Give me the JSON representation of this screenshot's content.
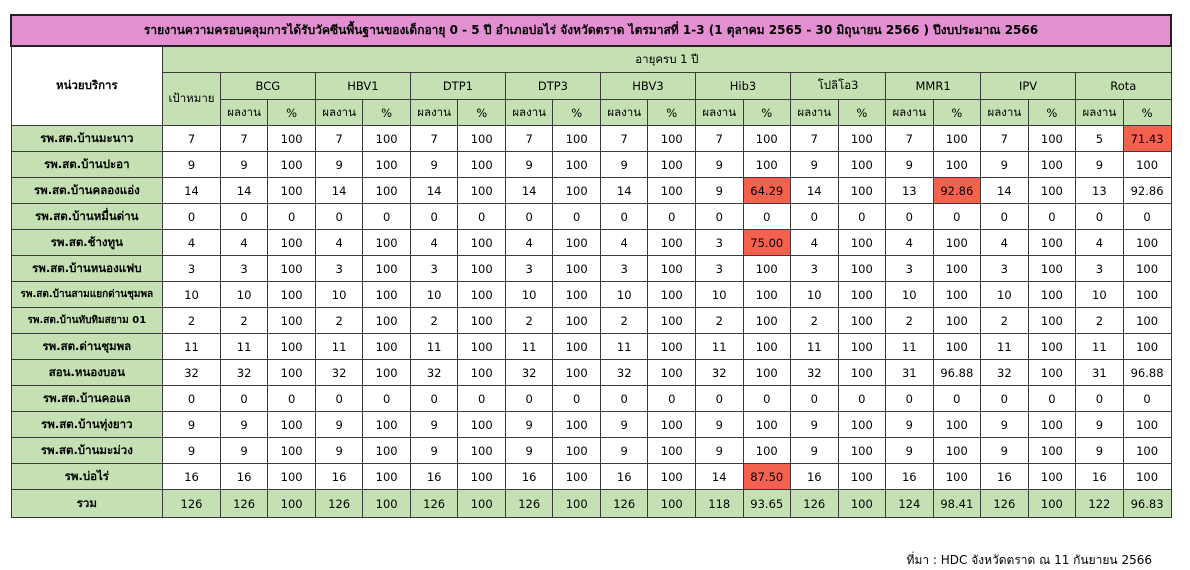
{
  "title": "รายงานความครอบคลุมการได้รับวัคซีนพื้นฐานของเด็กอายุ 0 - 5 ปี อำเภอบ่อไร่ จังหวัดตราด ไตรมาสที่ 1-3 (1 ตุลาคม 2565 - 30 มิถุนายน 2566 ) ปีงบประมาณ 2566",
  "unit_header": "หน่วยบริการ",
  "age_header": "อายุครบ 1 ปี",
  "target_header": "เป้าหมาย",
  "vaccines": [
    "BCG",
    "HBV1",
    "DTP1",
    "DTP3",
    "HBV3",
    "Hib3",
    "โปลิโอ3",
    "MMR1",
    "IPV",
    "Rota"
  ],
  "sub_headers": {
    "result": "ผลงาน",
    "percent": "%"
  },
  "highlight_color": "#f4624f",
  "header_color": "#e58fd3",
  "green_color": "#c5e0b3",
  "rows": [
    {
      "name": "รพ.สต.บ้านมะนาว",
      "target": "7",
      "cells": [
        [
          "7",
          "100"
        ],
        [
          "7",
          "100"
        ],
        [
          "7",
          "100"
        ],
        [
          "7",
          "100"
        ],
        [
          "7",
          "100"
        ],
        [
          "7",
          "100"
        ],
        [
          "7",
          "100"
        ],
        [
          "7",
          "100"
        ],
        [
          "7",
          "100"
        ],
        [
          "5",
          "71.43"
        ]
      ],
      "highlight": [
        9
      ]
    },
    {
      "name": "รพ.สต.บ้านปะอา",
      "target": "9",
      "cells": [
        [
          "9",
          "100"
        ],
        [
          "9",
          "100"
        ],
        [
          "9",
          "100"
        ],
        [
          "9",
          "100"
        ],
        [
          "9",
          "100"
        ],
        [
          "9",
          "100"
        ],
        [
          "9",
          "100"
        ],
        [
          "9",
          "100"
        ],
        [
          "9",
          "100"
        ],
        [
          "9",
          "100"
        ]
      ],
      "highlight": []
    },
    {
      "name": "รพ.สต.บ้านคลองแอ่ง",
      "target": "14",
      "cells": [
        [
          "14",
          "100"
        ],
        [
          "14",
          "100"
        ],
        [
          "14",
          "100"
        ],
        [
          "14",
          "100"
        ],
        [
          "14",
          "100"
        ],
        [
          "9",
          "64.29"
        ],
        [
          "14",
          "100"
        ],
        [
          "13",
          "92.86"
        ],
        [
          "14",
          "100"
        ],
        [
          "13",
          "92.86"
        ]
      ],
      "highlight": [
        5,
        7
      ]
    },
    {
      "name": "รพ.สต.บ้านหมื่นด่าน",
      "target": "0",
      "cells": [
        [
          "0",
          "0"
        ],
        [
          "0",
          "0"
        ],
        [
          "0",
          "0"
        ],
        [
          "0",
          "0"
        ],
        [
          "0",
          "0"
        ],
        [
          "0",
          "0"
        ],
        [
          "0",
          "0"
        ],
        [
          "0",
          "0"
        ],
        [
          "0",
          "0"
        ],
        [
          "0",
          "0"
        ]
      ],
      "highlight": []
    },
    {
      "name": "รพ.สต.ช้างทูน",
      "target": "4",
      "cells": [
        [
          "4",
          "100"
        ],
        [
          "4",
          "100"
        ],
        [
          "4",
          "100"
        ],
        [
          "4",
          "100"
        ],
        [
          "4",
          "100"
        ],
        [
          "3",
          "75.00"
        ],
        [
          "4",
          "100"
        ],
        [
          "4",
          "100"
        ],
        [
          "4",
          "100"
        ],
        [
          "4",
          "100"
        ]
      ],
      "highlight": [
        5
      ]
    },
    {
      "name": "รพ.สต.บ้านหนองแฟบ",
      "target": "3",
      "cells": [
        [
          "3",
          "100"
        ],
        [
          "3",
          "100"
        ],
        [
          "3",
          "100"
        ],
        [
          "3",
          "100"
        ],
        [
          "3",
          "100"
        ],
        [
          "3",
          "100"
        ],
        [
          "3",
          "100"
        ],
        [
          "3",
          "100"
        ],
        [
          "3",
          "100"
        ],
        [
          "3",
          "100"
        ]
      ],
      "highlight": []
    },
    {
      "name": "รพ.สต.บ้านสามแยกด่านชุมพล",
      "target": "10",
      "cells": [
        [
          "10",
          "100"
        ],
        [
          "10",
          "100"
        ],
        [
          "10",
          "100"
        ],
        [
          "10",
          "100"
        ],
        [
          "10",
          "100"
        ],
        [
          "10",
          "100"
        ],
        [
          "10",
          "100"
        ],
        [
          "10",
          "100"
        ],
        [
          "10",
          "100"
        ],
        [
          "10",
          "100"
        ]
      ],
      "highlight": [],
      "small": true
    },
    {
      "name": "รพ.สต.บ้านทับทิมสยาม 01",
      "target": "2",
      "cells": [
        [
          "2",
          "100"
        ],
        [
          "2",
          "100"
        ],
        [
          "2",
          "100"
        ],
        [
          "2",
          "100"
        ],
        [
          "2",
          "100"
        ],
        [
          "2",
          "100"
        ],
        [
          "2",
          "100"
        ],
        [
          "2",
          "100"
        ],
        [
          "2",
          "100"
        ],
        [
          "2",
          "100"
        ]
      ],
      "highlight": [],
      "small": true
    },
    {
      "name": "รพ.สต.ด่านชุมพล",
      "target": "11",
      "cells": [
        [
          "11",
          "100"
        ],
        [
          "11",
          "100"
        ],
        [
          "11",
          "100"
        ],
        [
          "11",
          "100"
        ],
        [
          "11",
          "100"
        ],
        [
          "11",
          "100"
        ],
        [
          "11",
          "100"
        ],
        [
          "11",
          "100"
        ],
        [
          "11",
          "100"
        ],
        [
          "11",
          "100"
        ]
      ],
      "highlight": []
    },
    {
      "name": "สอน.หนองบอน",
      "target": "32",
      "cells": [
        [
          "32",
          "100"
        ],
        [
          "32",
          "100"
        ],
        [
          "32",
          "100"
        ],
        [
          "32",
          "100"
        ],
        [
          "32",
          "100"
        ],
        [
          "32",
          "100"
        ],
        [
          "32",
          "100"
        ],
        [
          "31",
          "96.88"
        ],
        [
          "32",
          "100"
        ],
        [
          "31",
          "96.88"
        ]
      ],
      "highlight": []
    },
    {
      "name": "รพ.สต.บ้านคอแล",
      "target": "0",
      "cells": [
        [
          "0",
          "0"
        ],
        [
          "0",
          "0"
        ],
        [
          "0",
          "0"
        ],
        [
          "0",
          "0"
        ],
        [
          "0",
          "0"
        ],
        [
          "0",
          "0"
        ],
        [
          "0",
          "0"
        ],
        [
          "0",
          "0"
        ],
        [
          "0",
          "0"
        ],
        [
          "0",
          "0"
        ]
      ],
      "highlight": []
    },
    {
      "name": "รพ.สต.บ้านทุ่งยาว",
      "target": "9",
      "cells": [
        [
          "9",
          "100"
        ],
        [
          "9",
          "100"
        ],
        [
          "9",
          "100"
        ],
        [
          "9",
          "100"
        ],
        [
          "9",
          "100"
        ],
        [
          "9",
          "100"
        ],
        [
          "9",
          "100"
        ],
        [
          "9",
          "100"
        ],
        [
          "9",
          "100"
        ],
        [
          "9",
          "100"
        ]
      ],
      "highlight": []
    },
    {
      "name": "รพ.สต.บ้านมะม่วง",
      "target": "9",
      "cells": [
        [
          "9",
          "100"
        ],
        [
          "9",
          "100"
        ],
        [
          "9",
          "100"
        ],
        [
          "9",
          "100"
        ],
        [
          "9",
          "100"
        ],
        [
          "9",
          "100"
        ],
        [
          "9",
          "100"
        ],
        [
          "9",
          "100"
        ],
        [
          "9",
          "100"
        ],
        [
          "9",
          "100"
        ]
      ],
      "highlight": []
    },
    {
      "name": "รพ.บ่อไร่",
      "target": "16",
      "cells": [
        [
          "16",
          "100"
        ],
        [
          "16",
          "100"
        ],
        [
          "16",
          "100"
        ],
        [
          "16",
          "100"
        ],
        [
          "16",
          "100"
        ],
        [
          "14",
          "87.50"
        ],
        [
          "16",
          "100"
        ],
        [
          "16",
          "100"
        ],
        [
          "16",
          "100"
        ],
        [
          "16",
          "100"
        ]
      ],
      "highlight": [
        5
      ]
    }
  ],
  "total": {
    "label": "รวม",
    "target": "126",
    "cells": [
      [
        "126",
        "100"
      ],
      [
        "126",
        "100"
      ],
      [
        "126",
        "100"
      ],
      [
        "126",
        "100"
      ],
      [
        "126",
        "100"
      ],
      [
        "118",
        "93.65"
      ],
      [
        "126",
        "100"
      ],
      [
        "124",
        "98.41"
      ],
      [
        "126",
        "100"
      ],
      [
        "122",
        "96.83"
      ]
    ]
  },
  "source": "ที่มา : HDC จังหวัดตราด ณ 11 กันยายน 2566"
}
